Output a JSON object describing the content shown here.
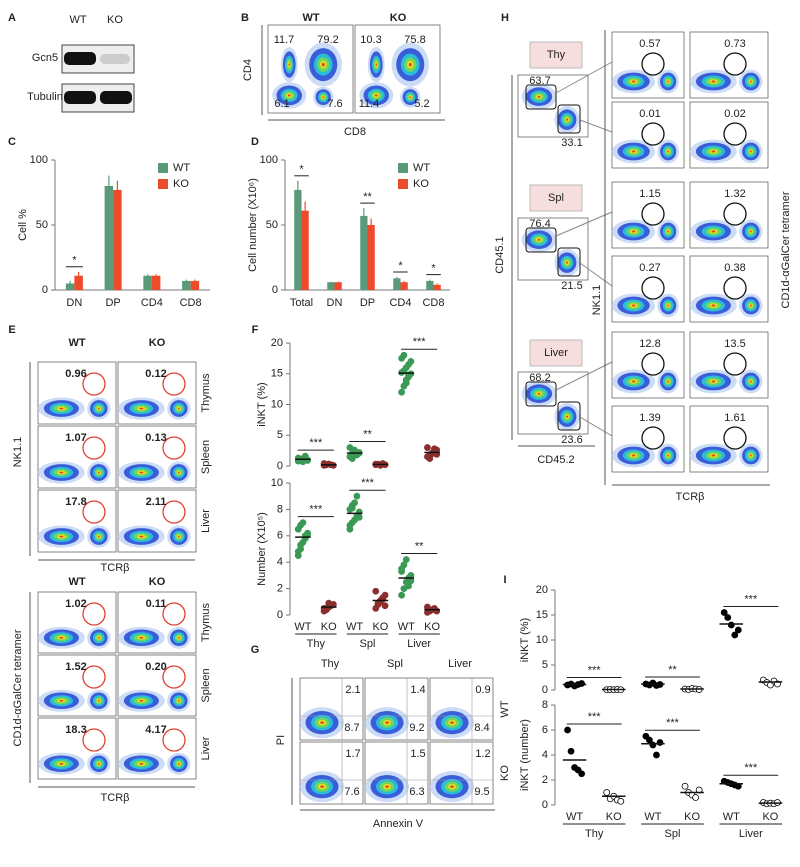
{
  "panel_labels": [
    "A",
    "B",
    "C",
    "D",
    "E",
    "F",
    "G",
    "H",
    "I"
  ],
  "a": {
    "columns": [
      "WT",
      "KO"
    ],
    "rows": [
      "Gcn5",
      "Tubulin"
    ]
  },
  "b": {
    "columns": [
      "WT",
      "KO"
    ],
    "y_axis": "CD4",
    "x_axis": "CD8",
    "gates": [
      [
        "11.7",
        "79.2",
        "6.1",
        "7.6"
      ],
      [
        "10.3",
        "75.8",
        "11.4",
        "5.2"
      ]
    ]
  },
  "e": {
    "columns": [
      "WT",
      "KO"
    ],
    "rows": [
      "Thymus",
      "Spleen",
      "Liver"
    ],
    "nk": {
      "y_axis": "NK1.1",
      "x_axis": "TCRβ",
      "values": [
        [
          "0.96",
          "0.12"
        ],
        [
          "1.07",
          "0.13"
        ],
        [
          "17.8",
          "2.11"
        ]
      ]
    },
    "tet": {
      "y_axis": "CD1d-αGalCer tetramer",
      "x_axis": "TCRβ",
      "values": [
        [
          "1.02",
          "0.11"
        ],
        [
          "1.52",
          "0.20"
        ],
        [
          "18.3",
          "4.17"
        ]
      ]
    }
  },
  "g": {
    "columns": [
      "Thy",
      "Spl",
      "Liver"
    ],
    "rows": [
      "WT",
      "KO"
    ],
    "y_axis": "PI",
    "x_axis": "Annexin V",
    "values": [
      [
        [
          "2.1",
          "8.7"
        ],
        [
          "1.4",
          "9.2"
        ],
        [
          "0.9",
          "8.4"
        ]
      ],
      [
        [
          "1.7",
          "7.6"
        ],
        [
          "1.5",
          "6.3"
        ],
        [
          "1.2",
          "9.5"
        ]
      ]
    ]
  },
  "h": {
    "tissues": [
      "Thy",
      "Spl",
      "Liver"
    ],
    "y_axis": "CD45.1",
    "x_axis": "CD45.2",
    "gates": [
      [
        "63.7",
        "33.1"
      ],
      [
        "76.4",
        "21.5"
      ],
      [
        "68.2",
        "23.6"
      ]
    ],
    "nk_axis": "NK1.1",
    "tet_axis": "CD1d-αGalCer tetramer",
    "tcr_axis": "TCRβ",
    "nk": [
      "0.57",
      "0.01",
      "1.15",
      "0.27",
      "12.8",
      "1.39"
    ],
    "tet": [
      "0.73",
      "0.02",
      "1.32",
      "0.38",
      "13.5",
      "1.61"
    ]
  },
  "chart_data": [
    {
      "type": "bar",
      "y_label": "Cell %",
      "categories": [
        "DN",
        "DP",
        "CD4",
        "CD8"
      ],
      "series": [
        {
          "name": "WT",
          "color": "#5a9a78",
          "values": [
            5,
            80,
            11,
            7
          ],
          "errors": [
            2,
            8,
            1,
            1
          ]
        },
        {
          "name": "KO",
          "color": "#ee4b2b",
          "values": [
            11,
            77,
            11,
            7
          ],
          "errors": [
            3,
            7,
            1,
            1
          ]
        }
      ],
      "ylim": [
        0,
        100
      ],
      "yticks": [
        0,
        50,
        100
      ],
      "significance": [
        "*",
        null,
        null,
        null
      ]
    },
    {
      "type": "bar",
      "y_label": "Cell number (X10⁶)",
      "categories": [
        "Total",
        "DN",
        "DP",
        "CD4",
        "CD8"
      ],
      "series": [
        {
          "name": "WT",
          "color": "#5a9a78",
          "values": [
            77,
            6,
            57,
            9,
            7
          ],
          "errors": [
            7,
            0.5,
            6,
            1,
            1
          ]
        },
        {
          "name": "KO",
          "color": "#ee4b2b",
          "values": [
            61,
            6,
            50,
            6,
            4
          ],
          "errors": [
            7,
            0.5,
            5,
            1,
            1
          ]
        }
      ],
      "ylim": [
        0,
        100
      ],
      "yticks": [
        0,
        50,
        100
      ],
      "significance": [
        "*",
        null,
        "**",
        "*",
        "*"
      ]
    },
    {
      "type": "strip",
      "y_label": "iNKT (%)",
      "ylim": [
        0,
        20
      ],
      "yticks": [
        0,
        5,
        10,
        15,
        20
      ],
      "colors": [
        "#3a9a55",
        "#8b2e2e",
        "#3a9a55",
        "#8b2e2e",
        "#3a9a55",
        "#8b2e2e"
      ],
      "filled": [
        true,
        true,
        true,
        true,
        true,
        true
      ],
      "points": [
        [
          0.8,
          1.0,
          1.2,
          1.5,
          0.9,
          1.3,
          1.1,
          0.7,
          1.6,
          1.0
        ],
        [
          0.1,
          0.2,
          0.3,
          0.2,
          0.1,
          0.4,
          0.2,
          0.3
        ],
        [
          1.5,
          2.0,
          2.6,
          1.8,
          2.2,
          3.0,
          1.2,
          2.4,
          1.9,
          2.1
        ],
        [
          0.2,
          0.3,
          0.1,
          0.4,
          0.2,
          0.3
        ],
        [
          12,
          13,
          14,
          14.5,
          15,
          15.2,
          15.5,
          16,
          16.5,
          17,
          17.5,
          18,
          13.5,
          14.8
        ],
        [
          1.5,
          1.8,
          2,
          2.3,
          2.6,
          3,
          1.2,
          2.1,
          2.8,
          1.9
        ]
      ],
      "means": [
        1.1,
        0.2,
        2.1,
        0.25,
        15.1,
        2.2
      ],
      "significance": [
        "***",
        "**",
        "***"
      ]
    },
    {
      "type": "strip",
      "y_label": "Number (X10⁵)",
      "ylim": [
        0,
        10
      ],
      "yticks": [
        0,
        2,
        4,
        6,
        8,
        10
      ],
      "categories": [
        "WT",
        "KO",
        "WT",
        "KO",
        "WT",
        "KO"
      ],
      "groups": [
        "Thy",
        "Spl",
        "Liver"
      ],
      "colors": [
        "#3a9a55",
        "#8b2e2e",
        "#3a9a55",
        "#8b2e2e",
        "#3a9a55",
        "#8b2e2e"
      ],
      "filled": [
        true,
        true,
        true,
        true,
        true,
        true
      ],
      "points": [
        [
          4.5,
          5,
          5.5,
          6,
          6.2,
          6.5,
          6.8,
          7,
          5.8,
          6.1,
          4.8,
          5.3
        ],
        [
          0.3,
          0.5,
          0.6,
          0.7,
          0.8,
          0.5,
          0.4,
          0.9
        ],
        [
          6.5,
          7,
          7.2,
          7.5,
          7.8,
          8,
          8.3,
          8.5,
          9,
          7.4,
          6.8,
          8.1
        ],
        [
          0.5,
          0.8,
          1,
          1.2,
          1.5,
          1.8,
          0.9,
          1.1,
          1.3,
          0.7
        ],
        [
          1.5,
          2,
          2.5,
          2.8,
          3,
          3.3,
          3.8,
          4.2,
          2.2,
          2.6,
          3.5
        ],
        [
          0.2,
          0.3,
          0.4,
          0.5,
          0.3,
          0.6
        ]
      ],
      "means": [
        5.9,
        0.6,
        7.7,
        1.1,
        2.8,
        0.4
      ],
      "significance": [
        "***",
        "***",
        "**"
      ]
    },
    {
      "type": "strip",
      "y_label": "iNKT (%)",
      "ylim": [
        0,
        20
      ],
      "yticks": [
        0,
        5,
        10,
        15,
        20
      ],
      "colors": [
        "#000000",
        "#000000",
        "#000000",
        "#000000",
        "#000000",
        "#000000"
      ],
      "filled": [
        true,
        false,
        true,
        false,
        true,
        false
      ],
      "points": [
        [
          1.0,
          1.2,
          0.8,
          1.1,
          1.3
        ],
        [
          0.05,
          0.1,
          0.05,
          0.1,
          0.05
        ],
        [
          1.2,
          1.0,
          1.4,
          0.9,
          1.1
        ],
        [
          0.2,
          0.1,
          0.3,
          0.2,
          0.1
        ],
        [
          15.5,
          14.5,
          13,
          11,
          12
        ],
        [
          2,
          1.5,
          1,
          1.8,
          1.2
        ]
      ],
      "means": [
        1.1,
        0.1,
        1.2,
        0.2,
        13.2,
        1.6
      ],
      "significance": [
        "***",
        "**",
        "***"
      ]
    },
    {
      "type": "strip",
      "y_label": "iNKT (number)",
      "ylim": [
        0,
        8
      ],
      "yticks": [
        0,
        2,
        4,
        6,
        8
      ],
      "categories": [
        "WT",
        "KO",
        "WT",
        "KO",
        "WT",
        "KO"
      ],
      "groups": [
        "Thy",
        "Spl",
        "Liver"
      ],
      "colors": [
        "#000000",
        "#000000",
        "#000000",
        "#000000",
        "#000000",
        "#000000"
      ],
      "filled": [
        true,
        false,
        true,
        false,
        true,
        false
      ],
      "points": [
        [
          6,
          4.3,
          3,
          2.8,
          2.5
        ],
        [
          1.0,
          0.5,
          0.7,
          0.4,
          0.3
        ],
        [
          5.5,
          5.2,
          4.8,
          4,
          5
        ],
        [
          1.5,
          1.0,
          0.8,
          0.6,
          1.2
        ],
        [
          1.9,
          1.8,
          1.7,
          1.6,
          1.5
        ],
        [
          0.2,
          0.1,
          0.15,
          0.1,
          0.2
        ]
      ],
      "means": [
        3.6,
        0.7,
        4.9,
        1.0,
        1.7,
        0.15
      ],
      "significance": [
        "***",
        "***",
        "***"
      ]
    }
  ]
}
